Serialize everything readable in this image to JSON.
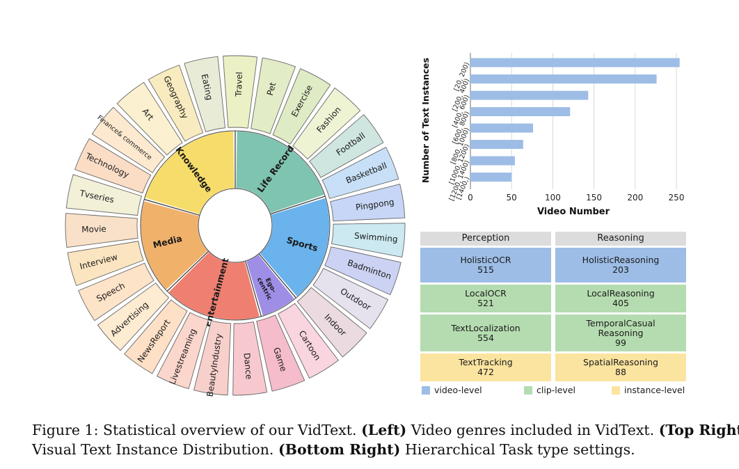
{
  "sunburst": {
    "inner": [
      {
        "label": "Knowledge",
        "color": "#f6dc6a"
      },
      {
        "label": "Life Record",
        "color": "#7fc4b1"
      },
      {
        "label": "Sports",
        "color": "#6ab3ed"
      },
      {
        "label": "Ego-",
        "label2": "centric",
        "color": "#9f8ee6"
      },
      {
        "label": "Entertainment",
        "color": "#ef7f70"
      },
      {
        "label": "Media",
        "color": "#f0b16b"
      }
    ],
    "outer": [
      {
        "label": "Art",
        "color": "#fbf0cf"
      },
      {
        "label": "Geography",
        "color": "#f8ebbf"
      },
      {
        "label": "Eating",
        "color": "#e8ecd7"
      },
      {
        "label": "Travel",
        "color": "#ecf1c5"
      },
      {
        "label": "Pet",
        "color": "#e2ecc6"
      },
      {
        "label": "Exercise",
        "color": "#deebc4"
      },
      {
        "label": "Fashion",
        "color": "#eef3d4"
      },
      {
        "label": "Football",
        "color": "#cfe6e0"
      },
      {
        "label": "Basketball",
        "color": "#c8e0f7"
      },
      {
        "label": "Pingpong",
        "color": "#c7d6f7"
      },
      {
        "label": "Swimming",
        "color": "#cce9f1"
      },
      {
        "label": "Badminton",
        "color": "#ccd2f3"
      },
      {
        "label": "Outdoor",
        "color": "#e5e2ee"
      },
      {
        "label": "Indoor",
        "color": "#ebdbe1"
      },
      {
        "label": "Cartoon",
        "color": "#f9d5df"
      },
      {
        "label": "Game",
        "color": "#f5bccb"
      },
      {
        "label": "Dance",
        "color": "#f7c9cf"
      },
      {
        "label": "BeautyIndustry",
        "color": "#f7d0cb"
      },
      {
        "label": "Livestreaming",
        "color": "#fbd6cc"
      },
      {
        "label": "NewsReport",
        "color": "#fde0c6"
      },
      {
        "label": "Advertising",
        "color": "#fdebd2"
      },
      {
        "label": "Speech",
        "color": "#fde3c8"
      },
      {
        "label": "Interview",
        "color": "#fbe5c0"
      },
      {
        "label": "Movie",
        "color": "#f8e1c8"
      },
      {
        "label": "Tvseries",
        "color": "#f3f0d8"
      },
      {
        "label": "Technology",
        "color": "#fbdcc5"
      },
      {
        "label": "Finance& commerce",
        "color": "#fce9cf"
      }
    ]
  },
  "chart_data": {
    "type": "bar",
    "orientation": "horizontal",
    "categories": [
      "[20, 200)",
      "[200, 400)",
      "[400, 600)",
      "[600, 800)",
      "[800, 1000)",
      "[1000, 1200)",
      "[1200, 1400)",
      "[1400,)"
    ],
    "values": [
      254,
      226,
      143,
      121,
      76,
      64,
      54,
      50
    ],
    "xlabel": "Video Number",
    "ylabel": "Number of Text Instances",
    "xlim": [
      0,
      260
    ],
    "xticks": [
      0,
      50,
      100,
      150,
      200,
      250
    ],
    "grid": "x",
    "bar_color": "#9dbde6"
  },
  "table": {
    "headers": [
      "Perception",
      "Reasoning"
    ],
    "rows": [
      {
        "level": "video-level",
        "cells": [
          {
            "name": "HolisticOCR",
            "value": "515"
          },
          {
            "name": "HolisticReasoning",
            "value": "203"
          }
        ]
      },
      {
        "level": "clip-level",
        "cells": [
          {
            "name": "LocalOCR",
            "value": "521"
          },
          {
            "name": "LocalReasoning",
            "value": "405"
          }
        ]
      },
      {
        "level": "clip-level",
        "cells": [
          {
            "name": "TextLocalization",
            "value": "554"
          },
          {
            "name": "TemporalCasual",
            "name2": "Reasoning",
            "value": "99"
          }
        ]
      },
      {
        "level": "instance-level",
        "cells": [
          {
            "name": "TextTracking",
            "value": "472"
          },
          {
            "name": "SpatialReasoning",
            "value": "88"
          }
        ]
      }
    ]
  },
  "legend": [
    {
      "label": "video-level",
      "color": "#9dbde6"
    },
    {
      "label": "clip-level",
      "color": "#b5dcb0"
    },
    {
      "label": "instance-level",
      "color": "#fbe4a0"
    }
  ],
  "caption": {
    "lead": "Figure 1: Statistical overview of our VidText.",
    "b1": "(Left)",
    "t1": "Video genres included in VidText.",
    "b2": "(Top Right)",
    "t2": "Visual Text Instance Distribution.",
    "b3": "(Bottom Right)",
    "t3": "Hierarchical Task type settings."
  }
}
